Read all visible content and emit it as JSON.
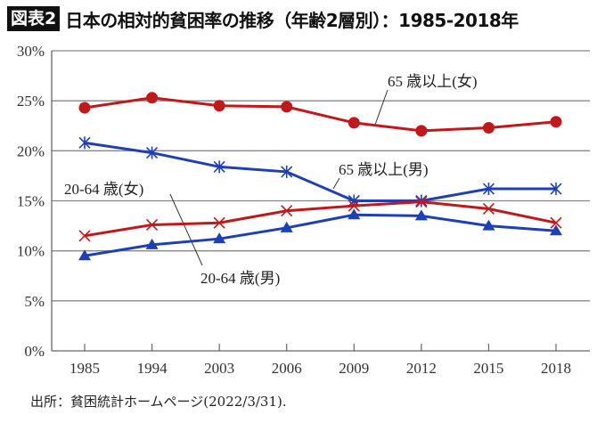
{
  "header": {
    "badge": "図表2",
    "title": "日本の相対的貧困率の推移（年齢2層別）：1985-2018年"
  },
  "source": "出所：貧困統計ホームページ(2022/3/31).",
  "chart_data": {
    "type": "line",
    "title": "日本の相対的貧困率の推移（年齢2層別）：1985-2018年",
    "xlabel": "",
    "ylabel": "",
    "categories": [
      "1985",
      "1994",
      "2003",
      "2006",
      "2009",
      "2012",
      "2015",
      "2018"
    ],
    "ylim": [
      0,
      30
    ],
    "yticks": [
      "0%",
      "5%",
      "10%",
      "15%",
      "20%",
      "25%",
      "30%"
    ],
    "grid": "horizontal",
    "series": [
      {
        "name": "65 歳以上(女)",
        "color": "#c0191c",
        "marker": "circle",
        "values": [
          24.3,
          25.3,
          24.5,
          24.4,
          22.8,
          22.0,
          22.3,
          22.9
        ]
      },
      {
        "name": "65 歳以上(男)",
        "color": "#1f3fb5",
        "marker": "asterisk",
        "values": [
          20.8,
          19.8,
          18.4,
          17.9,
          15.0,
          15.0,
          16.2,
          16.2
        ]
      },
      {
        "name": "20-64 歳(女)",
        "color": "#c0191c",
        "marker": "x",
        "values": [
          11.5,
          12.6,
          12.8,
          14.0,
          14.5,
          14.9,
          14.2,
          12.8
        ]
      },
      {
        "name": "20-64 歳(男)",
        "color": "#1f3fb5",
        "marker": "triangle",
        "values": [
          9.5,
          10.6,
          11.2,
          12.3,
          13.6,
          13.5,
          12.5,
          12.0
        ]
      }
    ]
  }
}
